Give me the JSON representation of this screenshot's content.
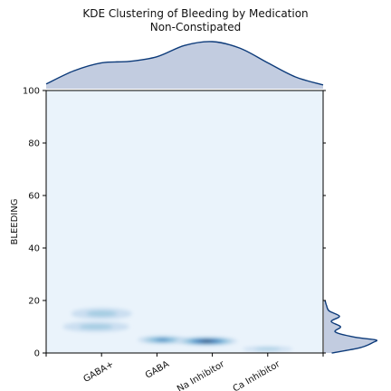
{
  "chart_data": {
    "type": "kde-jointplot",
    "title": "KDE Clustering of Bleeding by Medication",
    "subtitle": "Non-Constipated",
    "xlabel": "",
    "ylabel": "BLEEDING",
    "x_categories": [
      "GABA+",
      "GABA",
      "Na Inhibitor",
      "Ca Inhibitor"
    ],
    "x_positions": [
      1,
      2,
      3,
      4
    ],
    "xlim": [
      0,
      5
    ],
    "ylim": [
      0,
      100
    ],
    "y_ticks": [
      0,
      20,
      40,
      60,
      80,
      100
    ],
    "grid": false,
    "colormap": [
      "#eaf3fb",
      "#c6dbef",
      "#9ecae1",
      "#6baed6",
      "#3182bd",
      "#08519c",
      "#08306b"
    ],
    "background_color": "#eaf3fb",
    "marginal_fill_color": "#c2cce0",
    "marginal_line_color": "#0d3b7a",
    "clusters": [
      {
        "category": "GABA+",
        "x": 1.0,
        "y": 15,
        "x_spread": 0.55,
        "y_spread": 2.2,
        "density": 0.35
      },
      {
        "category": "GABA+",
        "x": 0.9,
        "y": 10,
        "x_spread": 0.6,
        "y_spread": 2.0,
        "density": 0.3
      },
      {
        "category": "GABA",
        "x": 2.1,
        "y": 5,
        "x_spread": 0.45,
        "y_spread": 1.5,
        "density": 0.7
      },
      {
        "category": "Na Inhibitor",
        "x": 2.9,
        "y": 4.5,
        "x_spread": 0.55,
        "y_spread": 1.6,
        "density": 1.0
      },
      {
        "category": "Ca Inhibitor",
        "x": 4.0,
        "y": 1.5,
        "x_spread": 0.45,
        "y_spread": 1.0,
        "density": 0.3
      }
    ],
    "marginal_x": {
      "x": [
        0,
        0.5,
        1.0,
        1.5,
        2.0,
        2.5,
        3.0,
        3.5,
        4.0,
        4.5,
        5.0
      ],
      "density": [
        0.1,
        0.38,
        0.55,
        0.58,
        0.68,
        0.92,
        1.0,
        0.86,
        0.55,
        0.25,
        0.08
      ]
    },
    "marginal_y": {
      "y": [
        0,
        2,
        4,
        5,
        6,
        8,
        10,
        12,
        14,
        16,
        18,
        20
      ],
      "density": [
        0.15,
        0.7,
        0.95,
        1.0,
        0.6,
        0.22,
        0.32,
        0.14,
        0.3,
        0.1,
        0.05,
        0.02
      ]
    }
  }
}
